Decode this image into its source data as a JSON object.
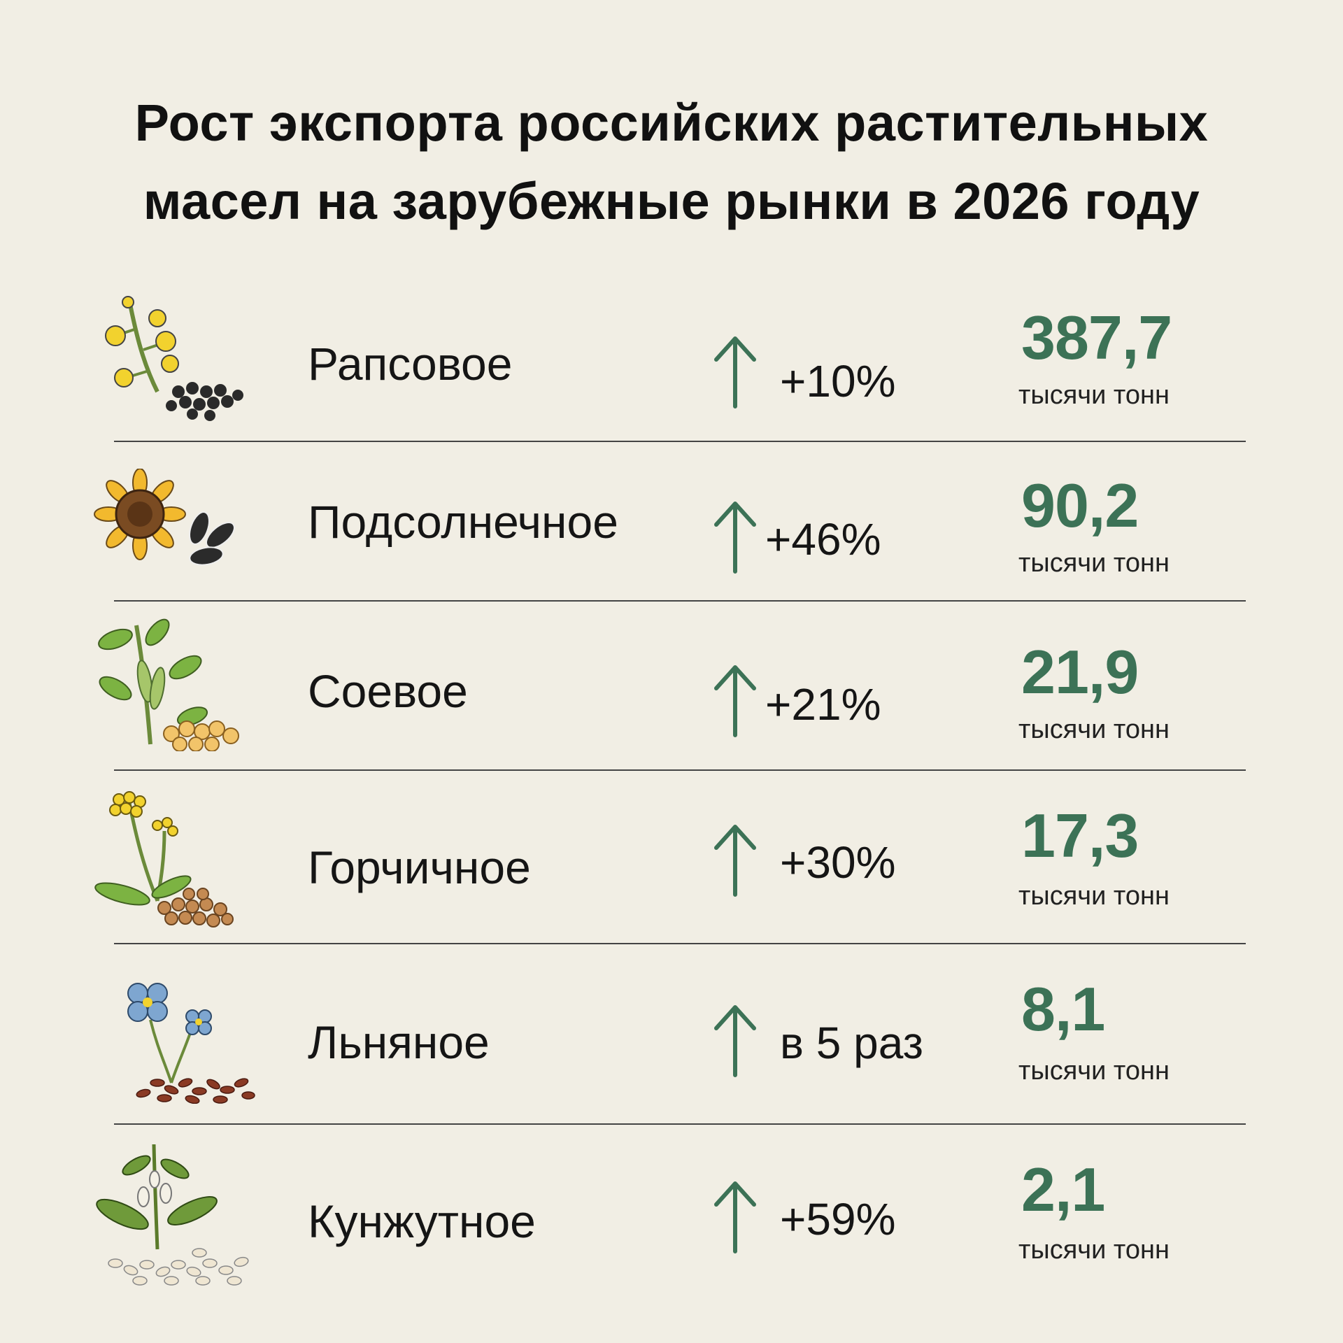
{
  "title": {
    "line1": "Рост экспорта российских растительных",
    "line2": "масел на зарубежные рынки в 2026 году"
  },
  "accent_color": "#3c7256",
  "rows": [
    {
      "name": "Рапсовое",
      "growth": "+10%",
      "value": "387,7",
      "unit": "тысячи тонн",
      "icon": "rapeseed-icon"
    },
    {
      "name": "Подсолнечное",
      "growth": "+46%",
      "value": "90,2",
      "unit": "тысячи тонн",
      "icon": "sunflower-icon"
    },
    {
      "name": "Соевое",
      "growth": "+21%",
      "value": "21,9",
      "unit": "тысячи тонн",
      "icon": "soybean-icon"
    },
    {
      "name": "Горчичное",
      "growth": "+30%",
      "value": "17,3",
      "unit": "тысячи тонн",
      "icon": "mustard-icon"
    },
    {
      "name": "Льняное",
      "growth": "в 5 раз",
      "value": "8,1",
      "unit": "тысячи тонн",
      "icon": "flax-icon"
    },
    {
      "name": "Кунжутное",
      "growth": "+59%",
      "value": "2,1",
      "unit": "тысячи тонн",
      "icon": "sesame-icon"
    }
  ]
}
